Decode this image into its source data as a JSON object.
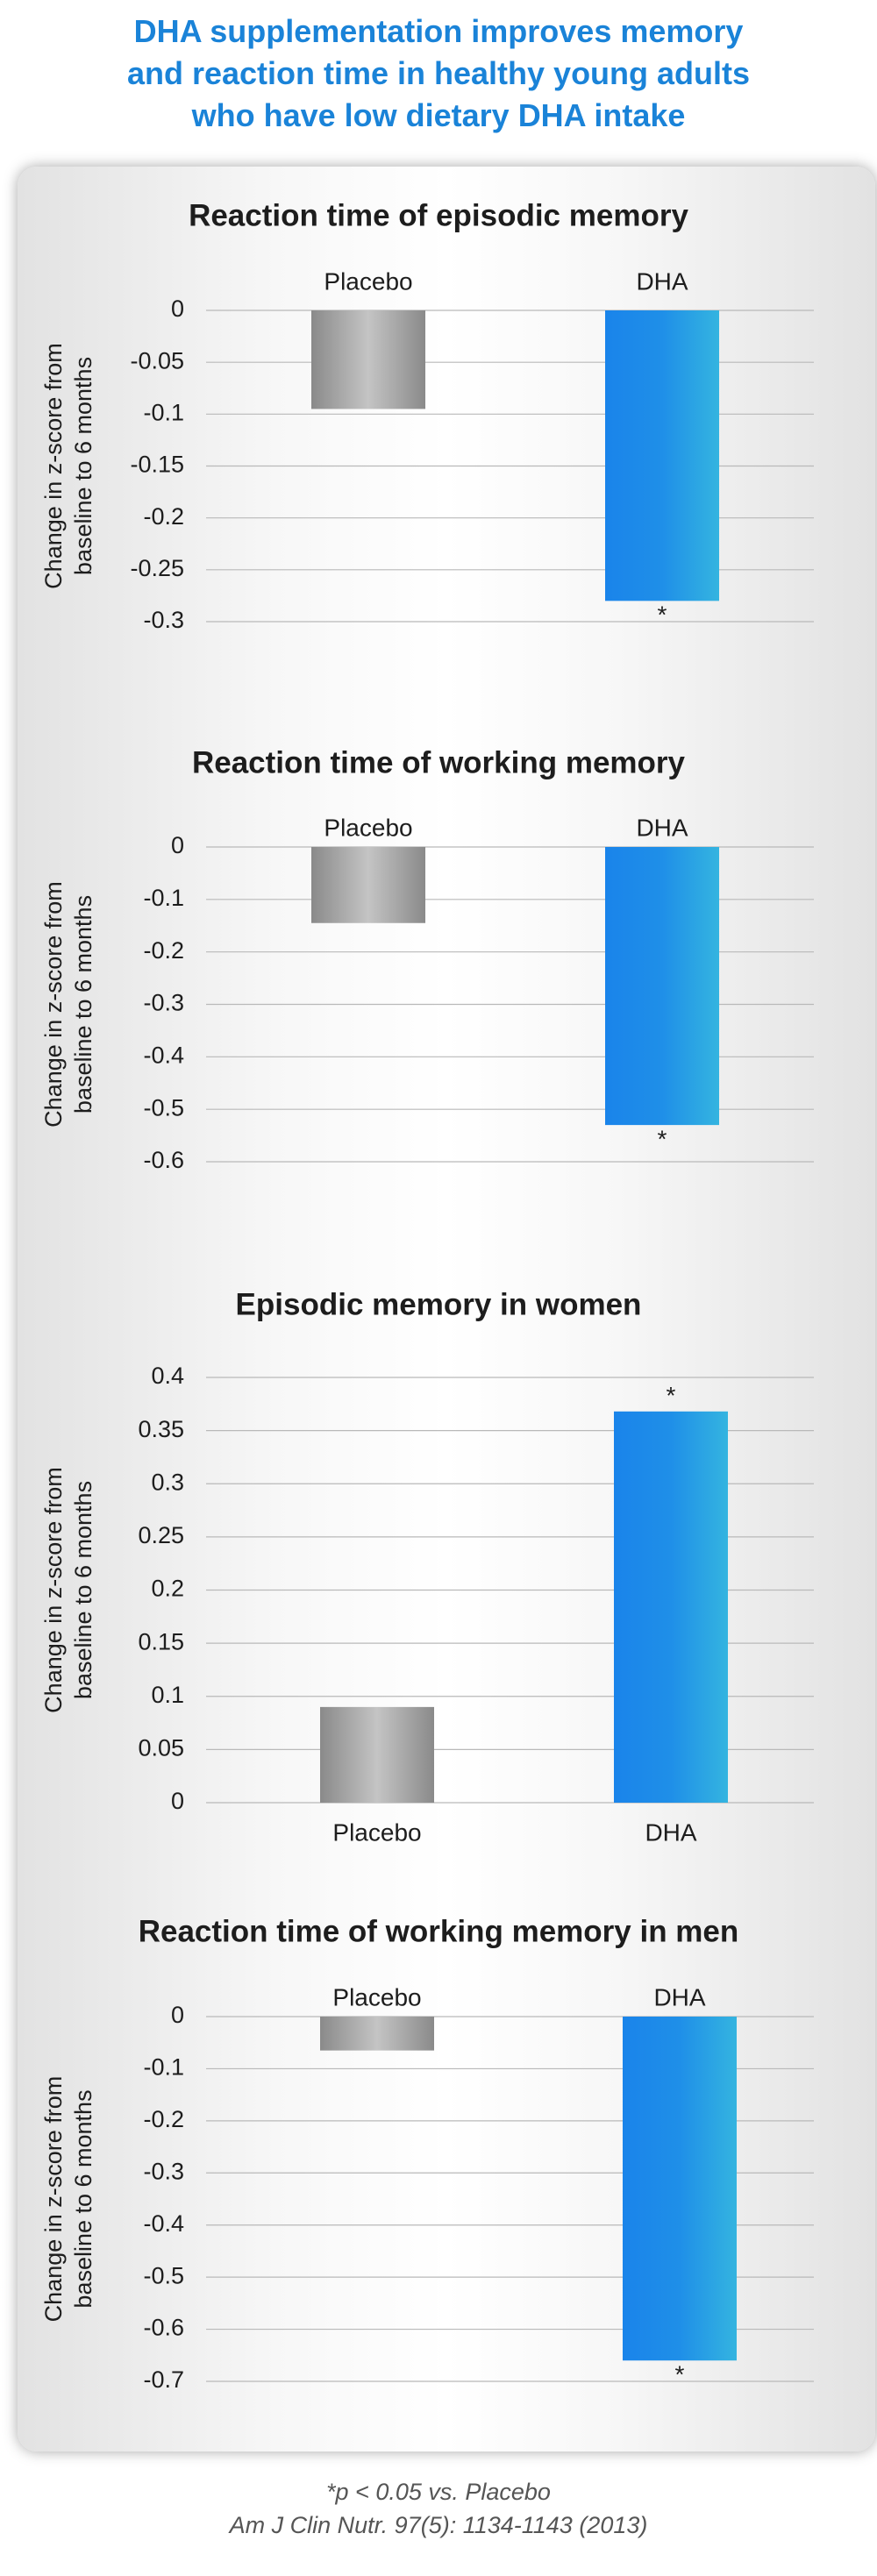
{
  "title_lines": [
    "DHA supplementation improves memory",
    "and reaction time in healthy young adults",
    "who have low dietary DHA intake"
  ],
  "footer": {
    "note": "*p < 0.05 vs. Placebo",
    "citation": "Am J Clin Nutr. 97(5): 1134-1143 (2013)"
  },
  "colors": {
    "placebo": "#9a9a9a",
    "dha": "#1f8fe8",
    "title": "#1a83d8"
  },
  "chart_data": [
    {
      "type": "bar",
      "title": "Reaction time of episodic memory",
      "ylabel": [
        "Change in z-score from",
        "baseline to 6 months"
      ],
      "categories": [
        "Placebo",
        "DHA"
      ],
      "values": [
        -0.095,
        -0.28
      ],
      "significance": [
        "",
        "*"
      ],
      "ylim": [
        -0.3,
        0
      ],
      "yticks": [
        0,
        -0.05,
        -0.1,
        -0.15,
        -0.2,
        -0.25,
        -0.3
      ],
      "ytick_labels": [
        "0",
        "-0.05",
        "-0.1",
        "-0.15",
        "-0.2",
        "-0.25",
        "-0.3"
      ],
      "grid": true,
      "category_labels_position": "top"
    },
    {
      "type": "bar",
      "title": "Reaction time of working memory",
      "ylabel": [
        "Change in z-score from",
        "baseline to 6 months"
      ],
      "categories": [
        "Placebo",
        "DHA"
      ],
      "values": [
        -0.145,
        -0.53
      ],
      "significance": [
        "",
        "*"
      ],
      "ylim": [
        -0.6,
        0
      ],
      "yticks": [
        0,
        -0.1,
        -0.2,
        -0.3,
        -0.4,
        -0.5,
        -0.6
      ],
      "ytick_labels": [
        "0",
        "-0.1",
        "-0.2",
        "-0.3",
        "-0.4",
        "-0.5",
        "-0.6"
      ],
      "grid": true,
      "category_labels_position": "top"
    },
    {
      "type": "bar",
      "title": "Episodic memory in women",
      "ylabel": [
        "Change in z-score from",
        "baseline to 6 months"
      ],
      "categories": [
        "Placebo",
        "DHA"
      ],
      "values": [
        0.09,
        0.368
      ],
      "significance": [
        "",
        "*"
      ],
      "ylim": [
        0,
        0.4
      ],
      "yticks": [
        0,
        0.05,
        0.1,
        0.15,
        0.2,
        0.25,
        0.3,
        0.35,
        0.4
      ],
      "ytick_labels": [
        "0",
        "0.05",
        "0.1",
        "0.15",
        "0.2",
        "0.25",
        "0.3",
        "0.35",
        "0.4"
      ],
      "grid": true,
      "category_labels_position": "bottom"
    },
    {
      "type": "bar",
      "title": "Reaction time of working memory in men",
      "ylabel": [
        "Change in z-score from",
        "baseline to 6 months"
      ],
      "categories": [
        "Placebo",
        "DHA"
      ],
      "values": [
        -0.065,
        -0.66
      ],
      "significance": [
        "",
        "*"
      ],
      "ylim": [
        -0.7,
        0
      ],
      "yticks": [
        0,
        -0.1,
        -0.2,
        -0.3,
        -0.4,
        -0.5,
        -0.6,
        -0.7
      ],
      "ytick_labels": [
        "0",
        "-0.1",
        "-0.2",
        "-0.3",
        "-0.4",
        "-0.5",
        "-0.6",
        "-0.7"
      ],
      "grid": true,
      "category_labels_position": "top"
    }
  ]
}
